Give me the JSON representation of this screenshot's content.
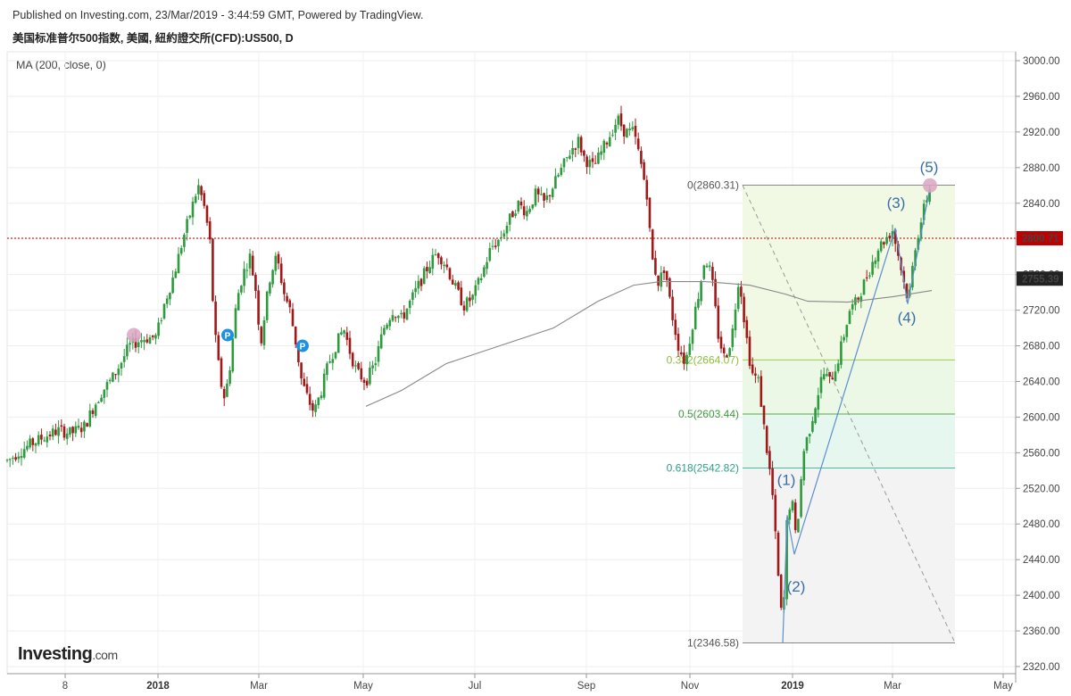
{
  "header": {
    "published": "Published on Investing.com, 23/Mar/2019 - 3:44:59 GMT, Powered by TradingView.",
    "instrument": "美国标准普尔500指数, 美國, 紐約證交所(CFD):US500, D"
  },
  "indicator": {
    "label": "MA (200, close, 0)"
  },
  "logo": {
    "brand": "Investing",
    "suffix": ".com"
  },
  "colors": {
    "up": "#2e9a3e",
    "down": "#a01818",
    "ma": "#888888",
    "price_line": "#c00000",
    "wave": "#3a6ea5",
    "fib_green": "#5aa84a"
  },
  "chart_data": {
    "type": "candlestick",
    "ylim": [
      2320,
      3000
    ],
    "y_ticks": [
      "3000.00",
      "2960.00",
      "2920.00",
      "2880.00",
      "2840.00",
      "2800.00",
      "2760.00",
      "2720.00",
      "2680.00",
      "2640.00",
      "2600.00",
      "2560.00",
      "2520.00",
      "2480.00",
      "2440.00",
      "2400.00",
      "2360.00",
      "2320.00"
    ],
    "x_ticks": [
      {
        "label": "8",
        "bold": false
      },
      {
        "label": "2018",
        "bold": true
      },
      {
        "label": "Mar",
        "bold": false
      },
      {
        "label": "May",
        "bold": false
      },
      {
        "label": "Jul",
        "bold": false
      },
      {
        "label": "Sep",
        "bold": false
      },
      {
        "label": "Nov",
        "bold": false
      },
      {
        "label": "2019",
        "bold": true
      },
      {
        "label": "Mar",
        "bold": false
      },
      {
        "label": "May",
        "bold": false
      }
    ],
    "last_price": {
      "value": 2800.71,
      "label": "2800.71"
    },
    "ma_value": {
      "value": 2755.39,
      "label": "2755.39"
    },
    "fibonacci": [
      {
        "ratio": "0",
        "value": 2860.31,
        "label": "0(2860.31)"
      },
      {
        "ratio": "0.382",
        "value": 2664.07,
        "label": "0.382(2664.07)"
      },
      {
        "ratio": "0.5",
        "value": 2603.44,
        "label": "0.5(2603.44)"
      },
      {
        "ratio": "0.618",
        "value": 2542.82,
        "label": "0.618(2542.82)"
      },
      {
        "ratio": "1",
        "value": 2346.58,
        "label": "1(2346.58)"
      }
    ],
    "wave_labels": [
      "(1)",
      "(2)",
      "(3)",
      "(4)",
      "(5)"
    ],
    "price_path": [
      [
        0,
        2548
      ],
      [
        10,
        2552
      ],
      [
        20,
        2560
      ],
      [
        35,
        2570
      ],
      [
        50,
        2578
      ],
      [
        65,
        2585
      ],
      [
        80,
        2582
      ],
      [
        95,
        2590
      ],
      [
        105,
        2612
      ],
      [
        115,
        2630
      ],
      [
        125,
        2642
      ],
      [
        135,
        2660
      ],
      [
        145,
        2680
      ],
      [
        160,
        2688
      ],
      [
        175,
        2690
      ],
      [
        185,
        2730
      ],
      [
        195,
        2760
      ],
      [
        205,
        2800
      ],
      [
        215,
        2835
      ],
      [
        222,
        2860
      ],
      [
        228,
        2840
      ],
      [
        235,
        2800
      ],
      [
        240,
        2700
      ],
      [
        247,
        2640
      ],
      [
        252,
        2620
      ],
      [
        258,
        2660
      ],
      [
        265,
        2730
      ],
      [
        272,
        2760
      ],
      [
        280,
        2780
      ],
      [
        287,
        2740
      ],
      [
        292,
        2680
      ],
      [
        297,
        2720
      ],
      [
        303,
        2760
      ],
      [
        310,
        2780
      ],
      [
        318,
        2740
      ],
      [
        325,
        2720
      ],
      [
        332,
        2680
      ],
      [
        338,
        2640
      ],
      [
        345,
        2620
      ],
      [
        352,
        2605
      ],
      [
        360,
        2630
      ],
      [
        368,
        2660
      ],
      [
        376,
        2680
      ],
      [
        385,
        2700
      ],
      [
        393,
        2670
      ],
      [
        400,
        2650
      ],
      [
        410,
        2640
      ],
      [
        420,
        2660
      ],
      [
        430,
        2700
      ],
      [
        440,
        2720
      ],
      [
        450,
        2710
      ],
      [
        460,
        2730
      ],
      [
        470,
        2750
      ],
      [
        480,
        2770
      ],
      [
        490,
        2785
      ],
      [
        500,
        2770
      ],
      [
        510,
        2745
      ],
      [
        520,
        2725
      ],
      [
        530,
        2735
      ],
      [
        540,
        2760
      ],
      [
        550,
        2790
      ],
      [
        560,
        2800
      ],
      [
        570,
        2820
      ],
      [
        580,
        2840
      ],
      [
        590,
        2830
      ],
      [
        600,
        2850
      ],
      [
        610,
        2840
      ],
      [
        620,
        2860
      ],
      [
        630,
        2880
      ],
      [
        640,
        2900
      ],
      [
        648,
        2910
      ],
      [
        655,
        2890
      ],
      [
        665,
        2880
      ],
      [
        675,
        2900
      ],
      [
        685,
        2920
      ],
      [
        692,
        2935
      ],
      [
        700,
        2920
      ],
      [
        710,
        2920
      ],
      [
        718,
        2885
      ],
      [
        725,
        2850
      ],
      [
        730,
        2780
      ],
      [
        738,
        2750
      ],
      [
        745,
        2770
      ],
      [
        752,
        2720
      ],
      [
        760,
        2680
      ],
      [
        768,
        2660
      ],
      [
        775,
        2700
      ],
      [
        783,
        2740
      ],
      [
        790,
        2780
      ],
      [
        797,
        2760
      ],
      [
        805,
        2690
      ],
      [
        812,
        2665
      ],
      [
        820,
        2690
      ],
      [
        828,
        2760
      ],
      [
        835,
        2700
      ],
      [
        842,
        2650
      ],
      [
        850,
        2640
      ],
      [
        857,
        2580
      ],
      [
        865,
        2520
      ],
      [
        872,
        2420
      ],
      [
        877,
        2360
      ],
      [
        882,
        2490
      ],
      [
        887,
        2510
      ],
      [
        892,
        2460
      ],
      [
        900,
        2560
      ],
      [
        908,
        2590
      ],
      [
        915,
        2620
      ],
      [
        922,
        2650
      ],
      [
        930,
        2640
      ],
      [
        938,
        2660
      ],
      [
        945,
        2690
      ],
      [
        952,
        2720
      ],
      [
        960,
        2730
      ],
      [
        968,
        2750
      ],
      [
        976,
        2770
      ],
      [
        984,
        2790
      ],
      [
        992,
        2800
      ],
      [
        1000,
        2810
      ],
      [
        1007,
        2780
      ],
      [
        1013,
        2750
      ],
      [
        1018,
        2730
      ],
      [
        1025,
        2790
      ],
      [
        1032,
        2820
      ],
      [
        1038,
        2845
      ],
      [
        1042,
        2858
      ],
      [
        1046,
        2800
      ]
    ],
    "ma_line": [
      [
        410,
        2612
      ],
      [
        450,
        2630
      ],
      [
        500,
        2660
      ],
      [
        560,
        2680
      ],
      [
        620,
        2700
      ],
      [
        670,
        2730
      ],
      [
        710,
        2748
      ],
      [
        740,
        2752
      ],
      [
        790,
        2752
      ],
      [
        840,
        2748
      ],
      [
        880,
        2738
      ],
      [
        905,
        2730
      ],
      [
        950,
        2729
      ],
      [
        1000,
        2735
      ],
      [
        1044,
        2742
      ]
    ]
  }
}
